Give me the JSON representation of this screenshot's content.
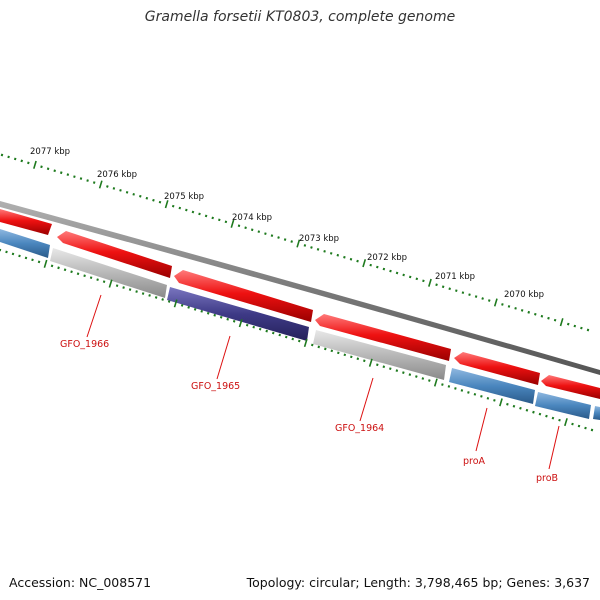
{
  "title": "Gramella forsetii KT0803, complete genome",
  "footer": {
    "accession": "Accession: NC_008571",
    "summary": "Topology: circular; Length: 3,798,465 bp; Genes: 3,637"
  },
  "scale": {
    "labels": [
      "2077 kbp",
      "2076 kbp",
      "2075 kbp",
      "2074 kbp",
      "2073 kbp",
      "2072 kbp",
      "2071 kbp",
      "2070 kbp"
    ]
  },
  "genes": {
    "labels": [
      "GFO_1966",
      "GFO_1965",
      "GFO_1964",
      "proA",
      "proB"
    ]
  },
  "colors": {
    "forward": "#ee1111",
    "reverse_blue": "#4a86be",
    "reverse_gray": "#b8b8b8",
    "reverse_purple": "#3e3a86",
    "backbone": "#7a7a7a",
    "ticks": "#1e7a1e",
    "gene_label": "#cc1111"
  }
}
